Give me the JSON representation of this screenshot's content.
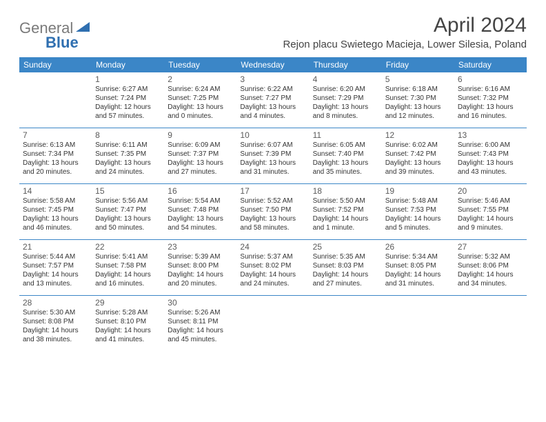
{
  "logo": {
    "gray": "General",
    "blue": "Blue"
  },
  "title": "April 2024",
  "location": "Rejon placu Swietego Macieja, Lower Silesia, Poland",
  "colors": {
    "header_bg": "#3b86c7",
    "header_text": "#ffffff",
    "border": "#3b86c7",
    "logo_gray": "#7a7a7a",
    "logo_blue": "#2f6fb0",
    "text": "#333333"
  },
  "day_headers": [
    "Sunday",
    "Monday",
    "Tuesday",
    "Wednesday",
    "Thursday",
    "Friday",
    "Saturday"
  ],
  "weeks": [
    [
      null,
      {
        "n": "1",
        "sr": "Sunrise: 6:27 AM",
        "ss": "Sunset: 7:24 PM",
        "dl1": "Daylight: 12 hours",
        "dl2": "and 57 minutes."
      },
      {
        "n": "2",
        "sr": "Sunrise: 6:24 AM",
        "ss": "Sunset: 7:25 PM",
        "dl1": "Daylight: 13 hours",
        "dl2": "and 0 minutes."
      },
      {
        "n": "3",
        "sr": "Sunrise: 6:22 AM",
        "ss": "Sunset: 7:27 PM",
        "dl1": "Daylight: 13 hours",
        "dl2": "and 4 minutes."
      },
      {
        "n": "4",
        "sr": "Sunrise: 6:20 AM",
        "ss": "Sunset: 7:29 PM",
        "dl1": "Daylight: 13 hours",
        "dl2": "and 8 minutes."
      },
      {
        "n": "5",
        "sr": "Sunrise: 6:18 AM",
        "ss": "Sunset: 7:30 PM",
        "dl1": "Daylight: 13 hours",
        "dl2": "and 12 minutes."
      },
      {
        "n": "6",
        "sr": "Sunrise: 6:16 AM",
        "ss": "Sunset: 7:32 PM",
        "dl1": "Daylight: 13 hours",
        "dl2": "and 16 minutes."
      }
    ],
    [
      {
        "n": "7",
        "sr": "Sunrise: 6:13 AM",
        "ss": "Sunset: 7:34 PM",
        "dl1": "Daylight: 13 hours",
        "dl2": "and 20 minutes."
      },
      {
        "n": "8",
        "sr": "Sunrise: 6:11 AM",
        "ss": "Sunset: 7:35 PM",
        "dl1": "Daylight: 13 hours",
        "dl2": "and 24 minutes."
      },
      {
        "n": "9",
        "sr": "Sunrise: 6:09 AM",
        "ss": "Sunset: 7:37 PM",
        "dl1": "Daylight: 13 hours",
        "dl2": "and 27 minutes."
      },
      {
        "n": "10",
        "sr": "Sunrise: 6:07 AM",
        "ss": "Sunset: 7:39 PM",
        "dl1": "Daylight: 13 hours",
        "dl2": "and 31 minutes."
      },
      {
        "n": "11",
        "sr": "Sunrise: 6:05 AM",
        "ss": "Sunset: 7:40 PM",
        "dl1": "Daylight: 13 hours",
        "dl2": "and 35 minutes."
      },
      {
        "n": "12",
        "sr": "Sunrise: 6:02 AM",
        "ss": "Sunset: 7:42 PM",
        "dl1": "Daylight: 13 hours",
        "dl2": "and 39 minutes."
      },
      {
        "n": "13",
        "sr": "Sunrise: 6:00 AM",
        "ss": "Sunset: 7:43 PM",
        "dl1": "Daylight: 13 hours",
        "dl2": "and 43 minutes."
      }
    ],
    [
      {
        "n": "14",
        "sr": "Sunrise: 5:58 AM",
        "ss": "Sunset: 7:45 PM",
        "dl1": "Daylight: 13 hours",
        "dl2": "and 46 minutes."
      },
      {
        "n": "15",
        "sr": "Sunrise: 5:56 AM",
        "ss": "Sunset: 7:47 PM",
        "dl1": "Daylight: 13 hours",
        "dl2": "and 50 minutes."
      },
      {
        "n": "16",
        "sr": "Sunrise: 5:54 AM",
        "ss": "Sunset: 7:48 PM",
        "dl1": "Daylight: 13 hours",
        "dl2": "and 54 minutes."
      },
      {
        "n": "17",
        "sr": "Sunrise: 5:52 AM",
        "ss": "Sunset: 7:50 PM",
        "dl1": "Daylight: 13 hours",
        "dl2": "and 58 minutes."
      },
      {
        "n": "18",
        "sr": "Sunrise: 5:50 AM",
        "ss": "Sunset: 7:52 PM",
        "dl1": "Daylight: 14 hours",
        "dl2": "and 1 minute."
      },
      {
        "n": "19",
        "sr": "Sunrise: 5:48 AM",
        "ss": "Sunset: 7:53 PM",
        "dl1": "Daylight: 14 hours",
        "dl2": "and 5 minutes."
      },
      {
        "n": "20",
        "sr": "Sunrise: 5:46 AM",
        "ss": "Sunset: 7:55 PM",
        "dl1": "Daylight: 14 hours",
        "dl2": "and 9 minutes."
      }
    ],
    [
      {
        "n": "21",
        "sr": "Sunrise: 5:44 AM",
        "ss": "Sunset: 7:57 PM",
        "dl1": "Daylight: 14 hours",
        "dl2": "and 13 minutes."
      },
      {
        "n": "22",
        "sr": "Sunrise: 5:41 AM",
        "ss": "Sunset: 7:58 PM",
        "dl1": "Daylight: 14 hours",
        "dl2": "and 16 minutes."
      },
      {
        "n": "23",
        "sr": "Sunrise: 5:39 AM",
        "ss": "Sunset: 8:00 PM",
        "dl1": "Daylight: 14 hours",
        "dl2": "and 20 minutes."
      },
      {
        "n": "24",
        "sr": "Sunrise: 5:37 AM",
        "ss": "Sunset: 8:02 PM",
        "dl1": "Daylight: 14 hours",
        "dl2": "and 24 minutes."
      },
      {
        "n": "25",
        "sr": "Sunrise: 5:35 AM",
        "ss": "Sunset: 8:03 PM",
        "dl1": "Daylight: 14 hours",
        "dl2": "and 27 minutes."
      },
      {
        "n": "26",
        "sr": "Sunrise: 5:34 AM",
        "ss": "Sunset: 8:05 PM",
        "dl1": "Daylight: 14 hours",
        "dl2": "and 31 minutes."
      },
      {
        "n": "27",
        "sr": "Sunrise: 5:32 AM",
        "ss": "Sunset: 8:06 PM",
        "dl1": "Daylight: 14 hours",
        "dl2": "and 34 minutes."
      }
    ],
    [
      {
        "n": "28",
        "sr": "Sunrise: 5:30 AM",
        "ss": "Sunset: 8:08 PM",
        "dl1": "Daylight: 14 hours",
        "dl2": "and 38 minutes."
      },
      {
        "n": "29",
        "sr": "Sunrise: 5:28 AM",
        "ss": "Sunset: 8:10 PM",
        "dl1": "Daylight: 14 hours",
        "dl2": "and 41 minutes."
      },
      {
        "n": "30",
        "sr": "Sunrise: 5:26 AM",
        "ss": "Sunset: 8:11 PM",
        "dl1": "Daylight: 14 hours",
        "dl2": "and 45 minutes."
      },
      null,
      null,
      null,
      null
    ]
  ]
}
